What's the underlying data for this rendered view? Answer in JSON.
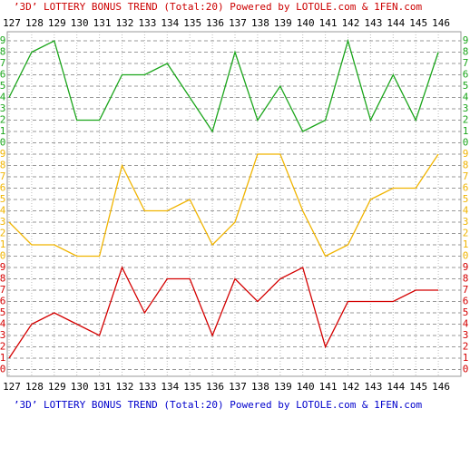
{
  "chart_data": {
    "type": "line",
    "title": "’3D’ LOTTERY BONUS TREND (Total:20)  Powered by LOTOLE.com & 1FEN.com",
    "footer": "’3D’ LOTTERY BONUS TREND (Total:20)  Powered by LOTOLE.com & 1FEN.com",
    "categories": [
      "127",
      "128",
      "129",
      "130",
      "131",
      "132",
      "133",
      "134",
      "135",
      "136",
      "137",
      "138",
      "139",
      "140",
      "141",
      "142",
      "143",
      "144",
      "145",
      "146"
    ],
    "series": [
      {
        "color": "#1aa51a",
        "values": [
          4,
          8,
          9,
          2,
          2,
          6,
          6,
          7,
          4,
          1,
          8,
          2,
          5,
          1,
          2,
          9,
          2,
          6,
          2,
          8
        ]
      },
      {
        "color": "#f0b400",
        "values": [
          3,
          1,
          1,
          0,
          0,
          8,
          4,
          4,
          5,
          1,
          3,
          9,
          9,
          4,
          0,
          1,
          5,
          6,
          6,
          9
        ]
      },
      {
        "color": "#d40000",
        "values": [
          1,
          4,
          5,
          4,
          3,
          9,
          5,
          8,
          8,
          3,
          8,
          6,
          8,
          9,
          2,
          6,
          6,
          6,
          7,
          7
        ]
      }
    ],
    "ylim": [
      0,
      9
    ],
    "yticks": [
      0,
      1,
      2,
      3,
      4,
      5,
      6,
      7,
      8,
      9
    ],
    "grid": true
  }
}
